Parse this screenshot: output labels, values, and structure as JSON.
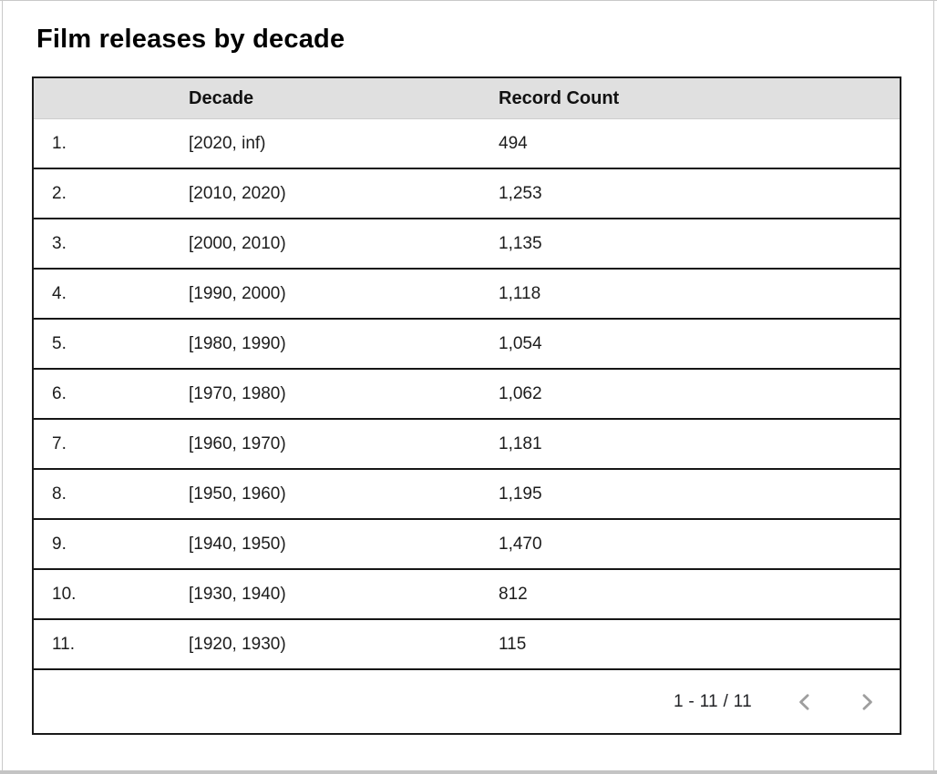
{
  "page": {
    "title": "Film releases by decade"
  },
  "table": {
    "header": {
      "index_label": "",
      "decade_label": "Decade",
      "count_label": "Record Count"
    },
    "rows": [
      {
        "index": "1.",
        "decade": "[2020, inf)",
        "count": "494"
      },
      {
        "index": "2.",
        "decade": "[2010, 2020)",
        "count": "1,253"
      },
      {
        "index": "3.",
        "decade": "[2000, 2010)",
        "count": "1,135"
      },
      {
        "index": "4.",
        "decade": "[1990, 2000)",
        "count": "1,118"
      },
      {
        "index": "5.",
        "decade": "[1980, 1990)",
        "count": "1,054"
      },
      {
        "index": "6.",
        "decade": "[1970, 1980)",
        "count": "1,062"
      },
      {
        "index": "7.",
        "decade": "[1960, 1970)",
        "count": "1,181"
      },
      {
        "index": "8.",
        "decade": "[1950, 1960)",
        "count": "1,195"
      },
      {
        "index": "9.",
        "decade": "[1940, 1950)",
        "count": "1,470"
      },
      {
        "index": "10.",
        "decade": "[1930, 1940)",
        "count": "812"
      },
      {
        "index": "11.",
        "decade": "[1920, 1930)",
        "count": "115"
      }
    ]
  },
  "pagination": {
    "range_label": "1 - 11 / 11",
    "prev_icon": "chevron-left",
    "next_icon": "chevron-right"
  },
  "colors": {
    "header_bg": "#e0e0e0",
    "row_border": "#161616",
    "chevron": "#9e9e9e",
    "title_text": "#000000"
  },
  "chart_data": {
    "type": "table",
    "title": "Film releases by decade",
    "columns": [
      "Decade",
      "Record Count"
    ],
    "rows": [
      [
        "[2020, inf)",
        494
      ],
      [
        "[2010, 2020)",
        1253
      ],
      [
        "[2000, 2010)",
        1135
      ],
      [
        "[1990, 2000)",
        1118
      ],
      [
        "[1980, 1990)",
        1054
      ],
      [
        "[1970, 1980)",
        1062
      ],
      [
        "[1960, 1970)",
        1181
      ],
      [
        "[1950, 1960)",
        1195
      ],
      [
        "[1940, 1950)",
        1470
      ],
      [
        "[1930, 1940)",
        812
      ],
      [
        "[1920, 1930)",
        115
      ]
    ],
    "pagination": "1 - 11 / 11"
  }
}
